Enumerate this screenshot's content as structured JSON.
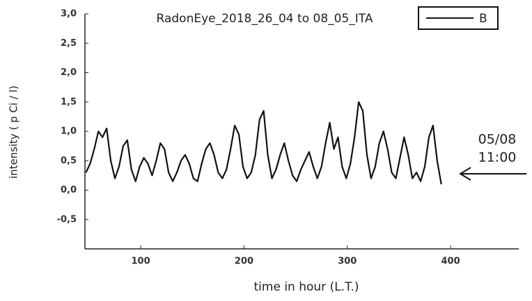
{
  "chart_data": {
    "type": "line",
    "title": "RadonEye_2018_26_04   to 08_05_ITA",
    "x_label": "time in hour (L.T.)",
    "y_label": "intensity ( p Ci / l)",
    "annotations": [
      "05/08",
      "11:00"
    ],
    "legend": "upper right",
    "xlim": [
      46,
      466
    ],
    "ylim": [
      -1.0,
      3.0
    ],
    "xticks": [
      100,
      200,
      300,
      400
    ],
    "yticks": [
      {
        "value": -0.5,
        "label": "-0,5"
      },
      {
        "value": 0,
        "label": "0,0"
      },
      {
        "value": 0.5,
        "label": "0,5"
      },
      {
        "value": 1.0,
        "label": "1,0"
      },
      {
        "value": 1.5,
        "label": "1,5"
      },
      {
        "value": 2.0,
        "label": "2,0"
      },
      {
        "value": 2.5,
        "label": "2,5"
      },
      {
        "value": 3.0,
        "label": "3,0"
      }
    ],
    "x": [
      47,
      51,
      55,
      59,
      63,
      67,
      71,
      75,
      79,
      83,
      87,
      91,
      95,
      99,
      103,
      107,
      111,
      115,
      119,
      123,
      127,
      131,
      135,
      139,
      143,
      147,
      151,
      155,
      159,
      163,
      167,
      171,
      175,
      179,
      183,
      187,
      191,
      195,
      199,
      203,
      207,
      211,
      215,
      219,
      223,
      227,
      231,
      235,
      239,
      243,
      247,
      251,
      255,
      259,
      263,
      267,
      271,
      275,
      279,
      283,
      287,
      291,
      295,
      299,
      303,
      307,
      311,
      315,
      319,
      323,
      327,
      331,
      335,
      339,
      343,
      347,
      351,
      355,
      359,
      363,
      367,
      371,
      375,
      379,
      383,
      387,
      391
    ],
    "series": [
      {
        "name": "B",
        "color": "#111111",
        "values": [
          0.3,
          0.45,
          0.7,
          1.0,
          0.9,
          1.05,
          0.5,
          0.2,
          0.4,
          0.75,
          0.85,
          0.35,
          0.15,
          0.4,
          0.55,
          0.45,
          0.25,
          0.5,
          0.8,
          0.7,
          0.3,
          0.15,
          0.3,
          0.5,
          0.6,
          0.45,
          0.2,
          0.15,
          0.45,
          0.7,
          0.8,
          0.6,
          0.3,
          0.2,
          0.35,
          0.7,
          1.1,
          0.95,
          0.4,
          0.2,
          0.3,
          0.6,
          1.2,
          1.35,
          0.6,
          0.2,
          0.35,
          0.6,
          0.8,
          0.5,
          0.25,
          0.15,
          0.35,
          0.5,
          0.65,
          0.4,
          0.2,
          0.4,
          0.8,
          1.15,
          0.7,
          0.9,
          0.4,
          0.2,
          0.45,
          0.9,
          1.5,
          1.35,
          0.6,
          0.2,
          0.4,
          0.8,
          1.0,
          0.7,
          0.3,
          0.2,
          0.55,
          0.9,
          0.6,
          0.2,
          0.3,
          0.15,
          0.4,
          0.9,
          1.1,
          0.5,
          0.1
        ]
      }
    ]
  }
}
